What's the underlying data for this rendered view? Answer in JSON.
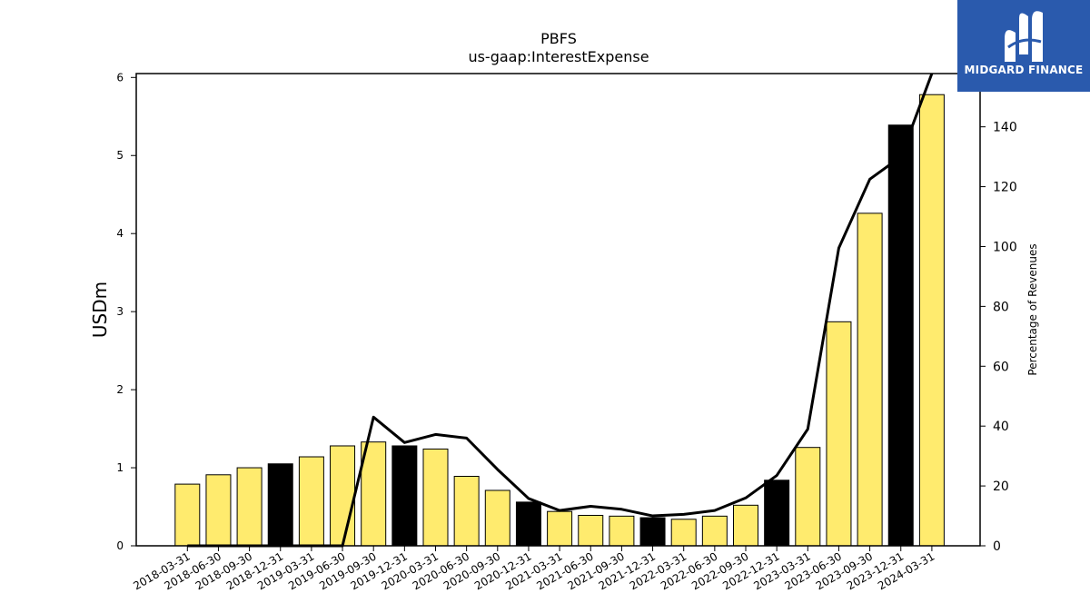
{
  "chart_data": {
    "type": "bar",
    "title": "PBFS",
    "subtitle": "us-gaap:InterestExpense",
    "ylabel": "USDm",
    "y2label": "Percentage of Revenues",
    "ylim": [
      0,
      6.05
    ],
    "y2lim": [
      0,
      157.8
    ],
    "yticks": [
      0,
      1,
      2,
      3,
      4,
      5,
      6
    ],
    "y2ticks": [
      0,
      20,
      40,
      60,
      80,
      100,
      120,
      140
    ],
    "grid": false,
    "categories": [
      "2018-03-31",
      "2018-06-30",
      "2018-09-30",
      "2018-12-31",
      "2019-03-31",
      "2019-06-30",
      "2019-09-30",
      "2019-12-31",
      "2020-03-31",
      "2020-06-30",
      "2020-09-30",
      "2020-12-31",
      "2021-03-31",
      "2021-06-30",
      "2021-09-30",
      "2021-12-31",
      "2022-03-31",
      "2022-06-30",
      "2022-09-30",
      "2022-12-31",
      "2023-03-31",
      "2023-06-30",
      "2023-09-30",
      "2023-12-31",
      "2024-03-31"
    ],
    "series": [
      {
        "type": "bar",
        "axis": "left",
        "values": [
          0.79,
          0.91,
          1.0,
          1.05,
          1.14,
          1.28,
          1.33,
          1.28,
          1.24,
          0.89,
          0.71,
          0.56,
          0.44,
          0.39,
          0.38,
          0.36,
          0.34,
          0.38,
          0.52,
          0.84,
          1.26,
          2.87,
          4.26,
          5.39,
          5.78
        ],
        "colors": [
          "#ffeb6e",
          "#ffeb6e",
          "#ffeb6e",
          "#000000",
          "#ffeb6e",
          "#ffeb6e",
          "#ffeb6e",
          "#000000",
          "#ffeb6e",
          "#ffeb6e",
          "#ffeb6e",
          "#000000",
          "#ffeb6e",
          "#ffeb6e",
          "#ffeb6e",
          "#000000",
          "#ffeb6e",
          "#ffeb6e",
          "#ffeb6e",
          "#000000",
          "#ffeb6e",
          "#ffeb6e",
          "#ffeb6e",
          "#000000",
          "#ffeb6e"
        ]
      },
      {
        "type": "line",
        "axis": "right",
        "color": "#000000",
        "values": [
          0,
          0,
          0,
          0,
          0,
          0,
          43,
          34.5,
          37.2,
          36,
          25.5,
          15.8,
          11.8,
          13.2,
          12.2,
          10,
          10.5,
          11.8,
          16,
          23.5,
          39,
          99.5,
          122.5,
          130,
          157.8
        ]
      }
    ]
  },
  "logo": {
    "text": "MIDGARD FINANCE",
    "bg": "#2a5aad",
    "fg": "#ffffff"
  }
}
